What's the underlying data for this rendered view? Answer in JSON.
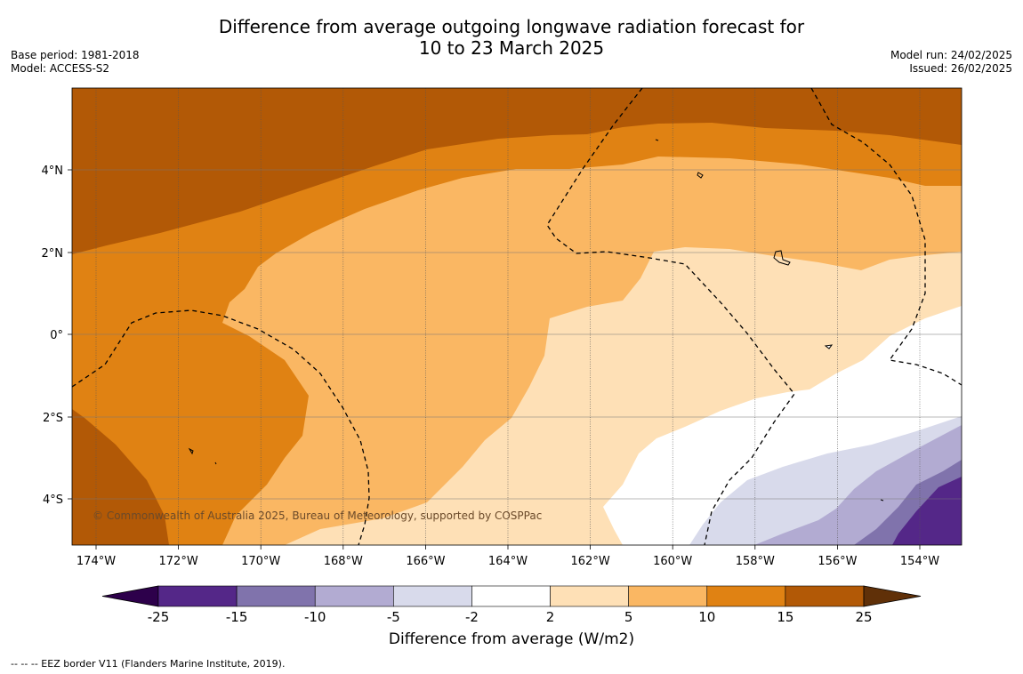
{
  "title": {
    "line1": "Difference from average outgoing longwave radiation forecast for",
    "line2": "10 to 23 March 2025"
  },
  "meta_left": {
    "base_period": "Base period: 1981-2018",
    "model": "Model: ACCESS-S2"
  },
  "meta_right": {
    "model_run": "Model run: 24/02/2025",
    "issued": "Issued: 26/02/2025"
  },
  "map": {
    "lon_range": [
      -174.6,
      -153.0
    ],
    "lat_range": [
      -5.2,
      5.9
    ],
    "lon_ticks": [
      "174°W",
      "172°W",
      "170°W",
      "168°W",
      "166°W",
      "164°W",
      "162°W",
      "160°W",
      "158°W",
      "156°W",
      "154°W"
    ],
    "lat_ticks": [
      "4°N",
      "2°N",
      "0°",
      "2°S",
      "4°S"
    ],
    "copyright": "© Commonwealth of Australia 2025, Bureau of Meteorology, supported by COSPPac",
    "colors": {
      "gt25": "#603008",
      "15_25": "#b25906",
      "10_15": "#e08213",
      "5_10": "#fab763",
      "2_5": "#fee0b6",
      "m2_2": "#ffffff",
      "m5_m2": "#d8daeb",
      "m10_m5": "#b2abd2",
      "m15_m10": "#8073ac",
      "m25_m15": "#542788",
      "lt_m25": "#2d004b"
    }
  },
  "colorbar": {
    "ticks": [
      "-25",
      "-15",
      "-10",
      "-5",
      "-2",
      "2",
      "5",
      "10",
      "15",
      "25"
    ],
    "colors": [
      "#542788",
      "#8073ac",
      "#b2abd2",
      "#d8daeb",
      "#ffffff",
      "#fee0b6",
      "#fab763",
      "#e08213",
      "#b25906"
    ],
    "under_color": "#2d004b",
    "over_color": "#603008",
    "label": "Difference from average (W/m2)"
  },
  "footer": "--  --  -- EEZ border V11 (Flanders Marine Institute, 2019)."
}
